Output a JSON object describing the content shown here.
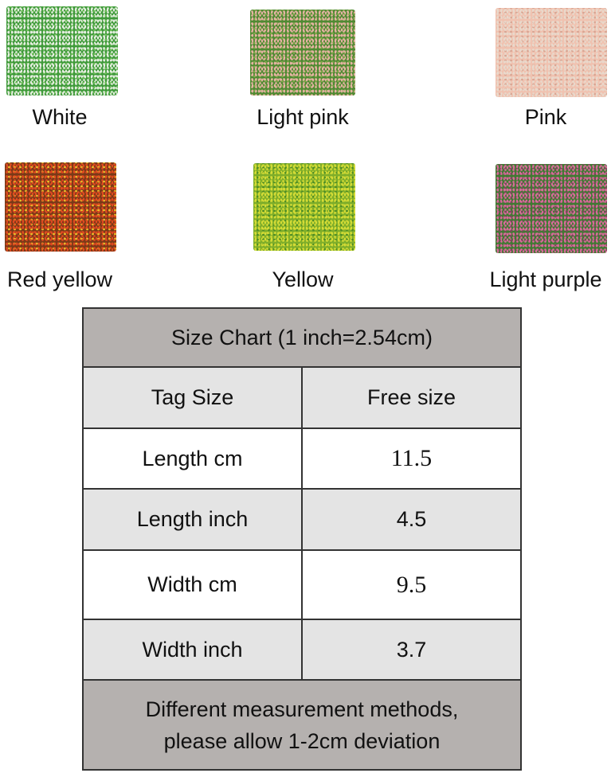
{
  "swatches": [
    {
      "label": "White",
      "colors": [
        "#3f9a3a",
        "#e8efe2",
        "#6fbf5a"
      ]
    },
    {
      "label": "Light pink",
      "colors": [
        "#4f8a32",
        "#e7b3a4",
        "#7ea848"
      ]
    },
    {
      "label": "Pink",
      "colors": [
        "#f0c2b0",
        "#e8d9cc",
        "#d9a593"
      ]
    },
    {
      "label": "Red yellow",
      "colors": [
        "#7a3a18",
        "#e04a20",
        "#e8c22a"
      ]
    },
    {
      "label": "Yellow",
      "colors": [
        "#7fae2a",
        "#d6dc36",
        "#4d8c26"
      ]
    },
    {
      "label": "Light purple",
      "colors": [
        "#3f7a32",
        "#d86a9a",
        "#7a4a5a"
      ]
    }
  ],
  "size_chart": {
    "title": "Size Chart (1 inch=2.54cm)",
    "rows": [
      {
        "label": "Tag Size",
        "value": "Free size"
      },
      {
        "label": "Length cm",
        "value": "11.5"
      },
      {
        "label": "Length inch",
        "value": "4.5"
      },
      {
        "label": "Width cm",
        "value": "9.5"
      },
      {
        "label": "Width inch",
        "value": "3.7"
      }
    ],
    "note_line1": "Different measurement methods,",
    "note_line2": "please allow 1-2cm deviation"
  }
}
